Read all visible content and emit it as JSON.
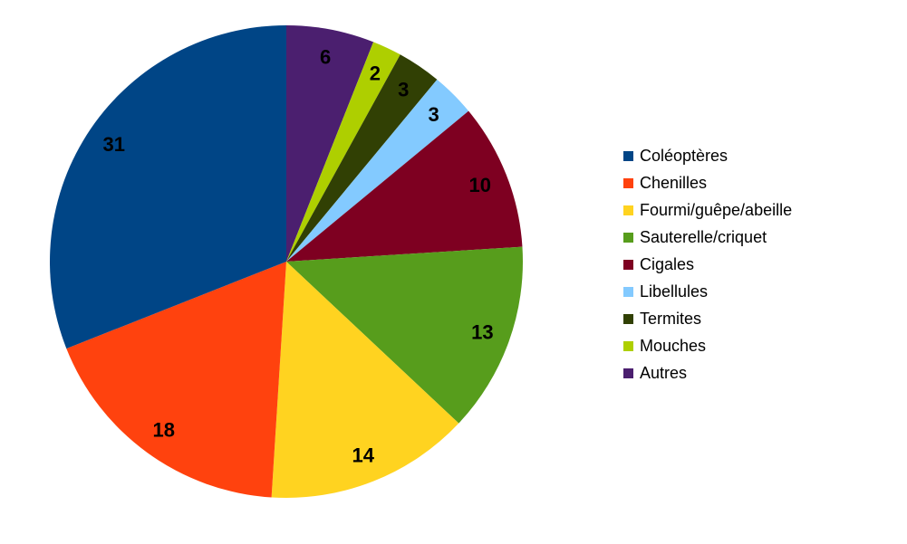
{
  "chart_data": {
    "type": "pie",
    "title": "",
    "slices": [
      {
        "label": "Coléoptères",
        "value": 31,
        "color": "#004586"
      },
      {
        "label": "Chenilles",
        "value": 18,
        "color": "#FF420E"
      },
      {
        "label": "Fourmi/guêpe/abeille",
        "value": 14,
        "color": "#FFD320"
      },
      {
        "label": "Sauterelle/criquet",
        "value": 13,
        "color": "#579D1C"
      },
      {
        "label": "Cigales",
        "value": 10,
        "color": "#7E0021"
      },
      {
        "label": "Libellules",
        "value": 3,
        "color": "#83CAFF"
      },
      {
        "label": "Termites",
        "value": 3,
        "color": "#314004"
      },
      {
        "label": "Mouches",
        "value": 2,
        "color": "#AECF00"
      },
      {
        "label": "Autres",
        "value": 6,
        "color": "#4B1F6F"
      }
    ],
    "legend_position": "right",
    "drawing_order": "clockwise from top, starting with Autres then Mouches, Termites, Libellules, Cigales, Sauterelle/criquet, Fourmi/guêpe/abeille, Chenilles, Coléoptères"
  }
}
